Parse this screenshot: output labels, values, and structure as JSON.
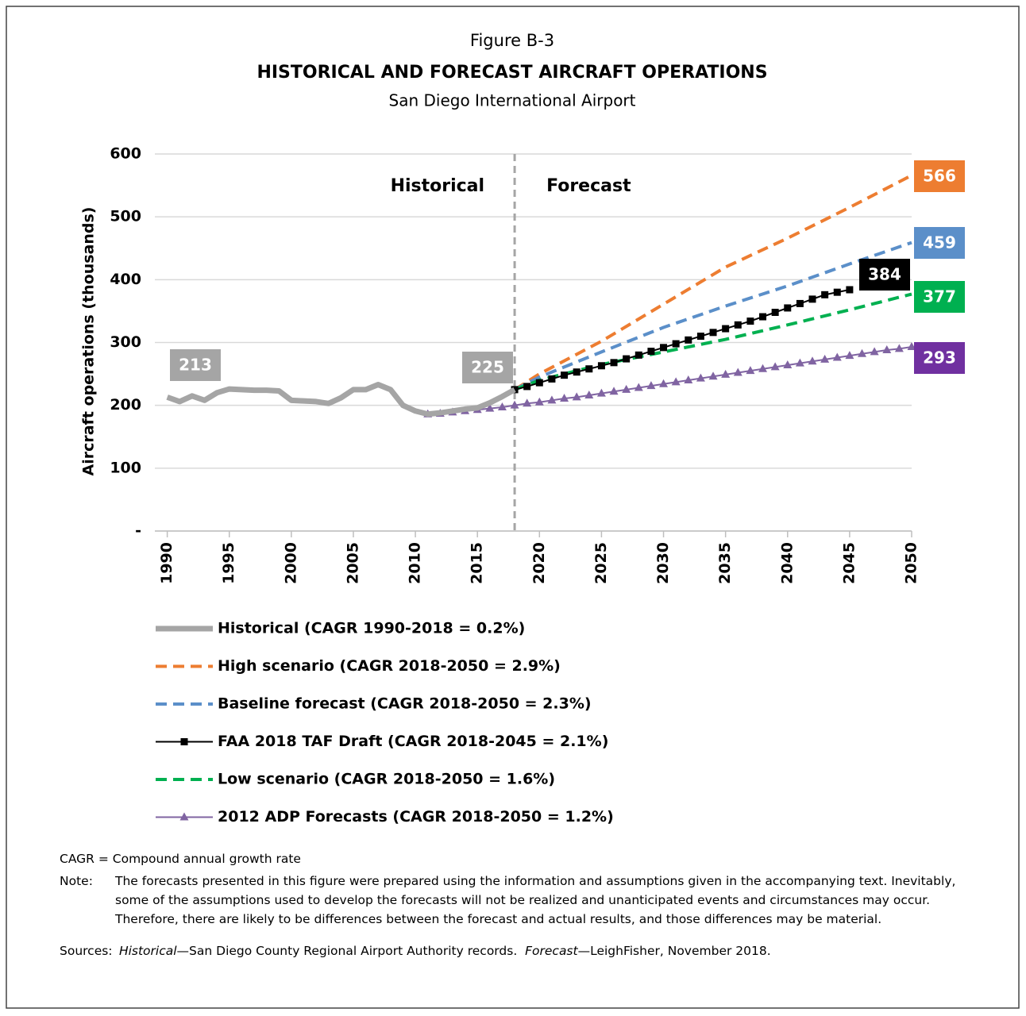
{
  "chart_data": {
    "type": "line",
    "figure_label": "Figure B-3",
    "title": "HISTORICAL AND FORECAST AIRCRAFT OPERATIONS",
    "subtitle": "San Diego International Airport",
    "y_label": "Aircraft operations (thousands)",
    "xlim": [
      1989,
      2050
    ],
    "xticks": [
      1990,
      1995,
      2000,
      2005,
      2010,
      2015,
      2020,
      2025,
      2030,
      2035,
      2040,
      2045,
      2050
    ],
    "ylim": [
      0,
      600
    ],
    "yticks": [
      {
        "value": 0,
        "label": "-"
      },
      100,
      200,
      300,
      400,
      500,
      600
    ],
    "grid": true,
    "divider_x": 2018,
    "region_labels": [
      "Historical",
      "Forecast"
    ],
    "series": [
      {
        "name": "Historical (CAGR 1990-2018 = 0.2%)",
        "color": "#a5a5a5",
        "style": "solid",
        "width": 7,
        "x": [
          1990,
          1991,
          1992,
          1993,
          1994,
          1995,
          1996,
          1997,
          1998,
          1999,
          2000,
          2001,
          2002,
          2003,
          2004,
          2005,
          2006,
          2007,
          2008,
          2009,
          2010,
          2011,
          2012,
          2013,
          2014,
          2015,
          2016,
          2017,
          2018
        ],
        "values": [
          213,
          206,
          215,
          208,
          220,
          226,
          225,
          224,
          224,
          223,
          208,
          207,
          206,
          203,
          212,
          225,
          225,
          233,
          225,
          200,
          191,
          186,
          188,
          191,
          194,
          196,
          204,
          214,
          225
        ]
      },
      {
        "name": "High scenario (CAGR 2018-2050 = 2.9%)",
        "color": "#ed7d31",
        "style": "dashed",
        "width": 4,
        "x": [
          2018,
          2020,
          2025,
          2030,
          2035,
          2040,
          2045,
          2050
        ],
        "values": [
          225,
          250,
          302,
          361,
          420,
          466,
          515,
          566
        ]
      },
      {
        "name": "Baseline forecast (CAGR 2018-2050 = 2.3%)",
        "color": "#5b8fc9",
        "style": "dashed",
        "width": 4,
        "x": [
          2018,
          2020,
          2025,
          2030,
          2035,
          2040,
          2045,
          2050
        ],
        "values": [
          225,
          245,
          285,
          324,
          358,
          390,
          425,
          459
        ]
      },
      {
        "name": "FAA 2018 TAF Draft (CAGR 2018-2045 = 2.1%)",
        "color": "#000000",
        "style": "solid",
        "width": 2,
        "marker": "square",
        "x": [
          2018,
          2019,
          2020,
          2021,
          2022,
          2023,
          2024,
          2025,
          2026,
          2027,
          2028,
          2029,
          2030,
          2031,
          2032,
          2033,
          2034,
          2035,
          2036,
          2037,
          2038,
          2039,
          2040,
          2041,
          2042,
          2043,
          2044,
          2045
        ],
        "values": [
          225,
          230,
          236,
          242,
          248,
          253,
          258,
          263,
          268,
          274,
          280,
          286,
          292,
          298,
          304,
          310,
          316,
          322,
          328,
          334,
          341,
          348,
          355,
          362,
          369,
          376,
          380,
          384
        ]
      },
      {
        "name": "Low scenario (CAGR 2018-2050 =  1.6%)",
        "color": "#00b050",
        "style": "dashed",
        "width": 4,
        "x": [
          2018,
          2020,
          2025,
          2030,
          2035,
          2040,
          2045,
          2050
        ],
        "values": [
          225,
          240,
          265,
          285,
          305,
          328,
          352,
          377
        ]
      },
      {
        "name": "2012 ADP Forecasts (CAGR 2018-2050 = 1.2%)",
        "color": "#8064a2",
        "style": "solid",
        "width": 2,
        "marker": "triangle",
        "x": [
          2011,
          2012,
          2013,
          2014,
          2015,
          2016,
          2017,
          2018,
          2019,
          2020,
          2021,
          2022,
          2023,
          2024,
          2025,
          2026,
          2027,
          2028,
          2029,
          2030,
          2031,
          2032,
          2033,
          2034,
          2035,
          2036,
          2037,
          2038,
          2039,
          2040,
          2041,
          2042,
          2043,
          2044,
          2045,
          2046,
          2047,
          2048,
          2049,
          2050
        ],
        "values": [
          186,
          187,
          189,
          191,
          193,
          195,
          197,
          200,
          203,
          205,
          208,
          211,
          213,
          216,
          219,
          222,
          225,
          228,
          231,
          234,
          237,
          240,
          243,
          246,
          249,
          252,
          255,
          258,
          261,
          264,
          267,
          270,
          273,
          276,
          279,
          282,
          285,
          288,
          290,
          293
        ]
      }
    ],
    "callouts": [
      {
        "value": 213,
        "color": "#a5a5a5"
      },
      {
        "value": 225,
        "color": "#a5a5a5"
      },
      {
        "value": 566,
        "color": "#ed7d31"
      },
      {
        "value": 459,
        "color": "#5b8fc9"
      },
      {
        "value": 384,
        "color": "#000000"
      },
      {
        "value": 377,
        "color": "#00b050"
      },
      {
        "value": 293,
        "color": "#7030a0"
      }
    ],
    "footnote": "CAGR = Compound annual growth rate",
    "note_label": "Note:",
    "note": "The forecasts presented in this figure were prepared using the information and assumptions given in the accompanying text.  Inevitably, some of the assumptions used to develop the forecasts will not be realized and unanticipated events and circumstances may occur.  Therefore, there are likely to be differences between the forecast and actual results, and those differences may be material.",
    "sources_label": "Sources:",
    "sources": [
      {
        "text": "Historical",
        "italic": true
      },
      {
        "text": "—San Diego County Regional Airport Authority records.  ",
        "italic": false
      },
      {
        "text": "Forecast",
        "italic": true
      },
      {
        "text": "—LeighFisher, November 2018.",
        "italic": false
      }
    ]
  }
}
